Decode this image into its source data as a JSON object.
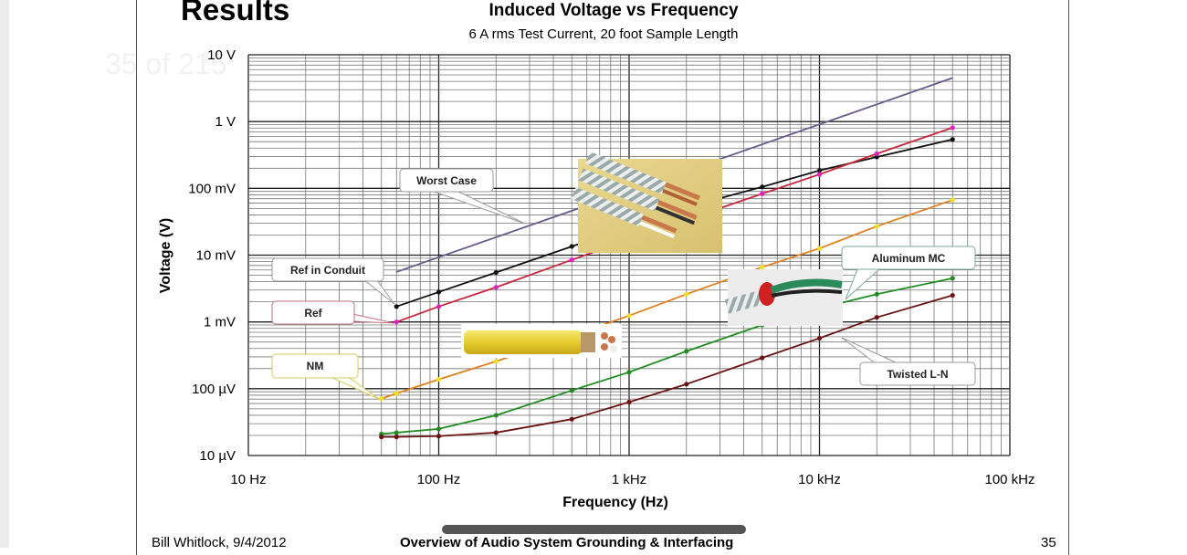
{
  "viewer": {
    "page_indicator": "35 of 215"
  },
  "slide": {
    "heading": "Results",
    "footer_author": "Bill Whitlock, 9/4/2012",
    "footer_title": "Overview of Audio System Grounding & Interfacing",
    "page_number": "35"
  },
  "chart_data": {
    "type": "line",
    "title": "Induced Voltage vs Frequency",
    "subtitle": "6 A rms Test Current, 20 foot Sample Length",
    "xlabel": "Frequency (Hz)",
    "ylabel": "Voltage (V)",
    "xscale": "log",
    "yscale": "log",
    "xlim": [
      10,
      100000
    ],
    "ylim": [
      1e-05,
      10
    ],
    "grid": true,
    "x_ticks": [
      {
        "v": 10,
        "label": "10 Hz"
      },
      {
        "v": 100,
        "label": "100 Hz"
      },
      {
        "v": 1000,
        "label": "1 kHz"
      },
      {
        "v": 10000,
        "label": "10 kHz"
      },
      {
        "v": 100000,
        "label": "100 kHz"
      }
    ],
    "y_ticks": [
      {
        "v": 10,
        "label": "10 V"
      },
      {
        "v": 1,
        "label": "1 V"
      },
      {
        "v": 0.1,
        "label": "100 mV"
      },
      {
        "v": 0.01,
        "label": "10 mV"
      },
      {
        "v": 0.001,
        "label": "1 mV"
      },
      {
        "v": 0.0001,
        "label": "100 µV"
      },
      {
        "v": 1e-05,
        "label": "10 µV"
      }
    ],
    "series": [
      {
        "name": "Worst Case",
        "color": "#6a5a8c",
        "markers": false,
        "x": [
          60,
          50000
        ],
        "y": [
          0.0056,
          4.5
        ]
      },
      {
        "name": "Ref in Conduit",
        "color": "#111111",
        "markers": true,
        "x": [
          60,
          100,
          200,
          500,
          1000,
          2000,
          5000,
          10000,
          20000,
          50000
        ],
        "y": [
          0.0017,
          0.0028,
          0.0055,
          0.0135,
          0.027,
          0.052,
          0.105,
          0.185,
          0.295,
          0.54
        ]
      },
      {
        "name": "Ref",
        "color": "#c8283c",
        "markerColor": "#e020c0",
        "markers": true,
        "x": [
          60,
          100,
          200,
          500,
          1000,
          2000,
          5000,
          10000,
          20000,
          50000
        ],
        "y": [
          0.001,
          0.0017,
          0.0033,
          0.0085,
          0.017,
          0.034,
          0.083,
          0.162,
          0.33,
          0.81
        ]
      },
      {
        "name": "NM",
        "color": "#e0801e",
        "markerColor": "#f0e020",
        "markers": true,
        "x": [
          50,
          60,
          100,
          200,
          500,
          1000,
          2000,
          5000,
          10000,
          20000,
          50000
        ],
        "y": [
          7.1e-05,
          8.5e-05,
          0.000138,
          0.000257,
          0.00062,
          0.00124,
          0.0026,
          0.0066,
          0.0126,
          0.027,
          0.067
        ]
      },
      {
        "name": "Aluminum MC",
        "color": "#228b22",
        "markers": true,
        "x": [
          50,
          60,
          100,
          200,
          500,
          1000,
          2000,
          5000,
          10000,
          20000,
          50000
        ],
        "y": [
          2.1e-05,
          2.2e-05,
          2.5e-05,
          4e-05,
          9.4e-05,
          0.000177,
          0.000364,
          0.0009,
          0.0016,
          0.0026,
          0.0045
        ]
      },
      {
        "name": "Twisted L-N",
        "color": "#6b1414",
        "markers": true,
        "x": [
          50,
          60,
          100,
          200,
          500,
          1000,
          2000,
          5000,
          10000,
          20000,
          50000
        ],
        "y": [
          1.9e-05,
          1.9e-05,
          1.95e-05,
          2.2e-05,
          3.5e-05,
          6.3e-05,
          0.000117,
          0.00029,
          0.00057,
          0.00117,
          0.0025
        ]
      }
    ],
    "annotations": [
      "Worst Case",
      "Ref in Conduit",
      "Ref",
      "NM",
      "Aluminum MC",
      "Twisted L-N"
    ]
  }
}
